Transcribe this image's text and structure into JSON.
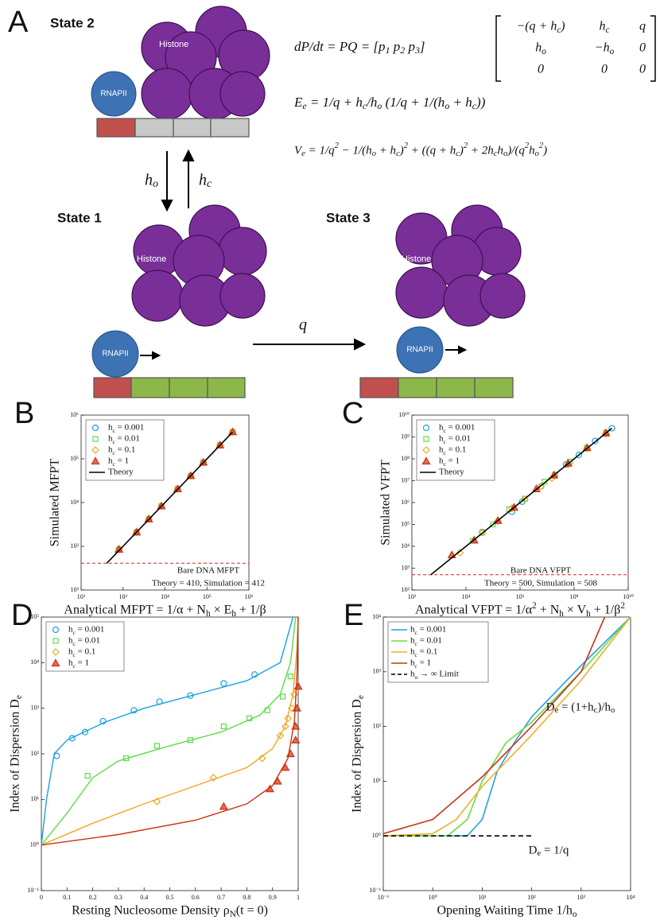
{
  "panel_a": {
    "label": "A",
    "state_2": "State 2",
    "state_1": "State 1",
    "state_3": "State 3",
    "histone_labels": [
      "Histone",
      "Histone",
      "Histone"
    ],
    "rnapii_labels": [
      "RNAPII",
      "RNAPII",
      "RNAPII"
    ],
    "rates": [
      "h_o",
      "h_c",
      "q"
    ],
    "equations": [
      "dP/dt = PQ = [p_1   p_2   p_3]",
      "E_e = 1/q + h_c/h_o (1/q + 1/(h_o + h_c))",
      "V_e = 1/q^2 − 1/(h_o + h_c)^2 + ((q + h_c)^2 + 2h_ch_o)/(q^2h_o^2)"
    ],
    "matrix": [
      [
        "−(q + h_c)",
        "h_c",
        "q"
      ],
      [
        "h_o",
        "−h_o",
        "0"
      ],
      [
        "0",
        "0",
        "0"
      ]
    ]
  },
  "chart_data": [
    {
      "type": "scatter",
      "panel_label": "B",
      "xlabel": "Analytical MFPT = 1/α + N_h × E_h + 1/β",
      "ylabel": "Simulated MFPT",
      "xscale": "log",
      "yscale": "log",
      "xlim": [
        100,
        1000000
      ],
      "ylim": [
        100,
        1000000
      ],
      "xticks": [
        {
          "value": 100,
          "label": "10²"
        },
        {
          "value": 1000,
          "label": "10³"
        },
        {
          "value": 10000,
          "label": "10⁴"
        },
        {
          "value": 100000,
          "label": "10⁵"
        },
        {
          "value": 1000000,
          "label": "10⁶"
        }
      ],
      "yticks": [
        {
          "value": 100,
          "label": "10²"
        },
        {
          "value": 1000,
          "label": "10³"
        },
        {
          "value": 10000,
          "label": "10⁴"
        },
        {
          "value": 100000,
          "label": "10⁵"
        },
        {
          "value": 1000000,
          "label": "10⁶"
        }
      ],
      "legend": "upper left",
      "series": [
        {
          "name": "h_c = 0.001",
          "color": "#1aa0e0",
          "marker": "circle",
          "x": [
            800,
            2100,
            4100,
            8200,
            20000,
            41000,
            82000,
            205000,
            410000
          ],
          "values": [
            850,
            2100,
            4200,
            8300,
            20500,
            41000,
            83000,
            206000,
            412000
          ]
        },
        {
          "name": "h_c = 0.01",
          "color": "#5ddb4a",
          "marker": "square",
          "x": [
            800,
            2100,
            4100,
            8200,
            20000,
            41000,
            82000,
            205000,
            410000
          ],
          "values": [
            850,
            2100,
            4200,
            8300,
            20500,
            41000,
            83000,
            206000,
            412000
          ]
        },
        {
          "name": "h_c = 0.1",
          "color": "#f0a820",
          "marker": "diamond",
          "x": [
            800,
            2100,
            4100,
            8200,
            20000,
            41000,
            82000,
            205000,
            410000
          ],
          "values": [
            850,
            2100,
            4200,
            8300,
            20500,
            41000,
            83000,
            206000,
            412000
          ]
        },
        {
          "name": "h_c = 1",
          "color": "#d03010",
          "marker": "triangle",
          "x": [
            800,
            2100,
            4100,
            8200,
            20000,
            41000,
            82000,
            205000,
            410000
          ],
          "values": [
            850,
            2100,
            4200,
            8300,
            20500,
            41000,
            83000,
            206000,
            412000
          ]
        },
        {
          "name": "Theory",
          "color": "#000000",
          "marker": "line",
          "x": [
            410,
            410000
          ],
          "values": [
            410,
            410000
          ]
        }
      ],
      "reference": {
        "value": 410,
        "color": "#e02020"
      },
      "annotations": [
        "Bare DNA MFPT",
        "Theory = 410, Simulation = 412"
      ]
    },
    {
      "type": "scatter",
      "panel_label": "C",
      "xlabel": "Analytical VFPT = 1/α^2 + N_h × V_h + 1/β^2",
      "ylabel": "Simulated VFPT",
      "xscale": "log",
      "yscale": "log",
      "xlim": [
        100,
        10000000000
      ],
      "ylim": [
        100,
        10000000000
      ],
      "xticks": [
        {
          "value": 100,
          "label": "10²"
        },
        {
          "value": 10000,
          "label": "10⁴"
        },
        {
          "value": 1000000,
          "label": "10⁶"
        },
        {
          "value": 100000000,
          "label": "10⁸"
        },
        {
          "value": 10000000000,
          "label": "10¹⁰"
        }
      ],
      "yticks": [
        {
          "value": 100,
          "label": "10²"
        },
        {
          "value": 1000,
          "label": "10³"
        },
        {
          "value": 10000,
          "label": "10⁴"
        },
        {
          "value": 100000,
          "label": "10⁵"
        },
        {
          "value": 1000000,
          "label": "10⁶"
        },
        {
          "value": 10000000,
          "label": "10⁷"
        },
        {
          "value": 100000000,
          "label": "10⁸"
        },
        {
          "value": 1000000000,
          "label": "10⁹"
        },
        {
          "value": 10000000000,
          "label": "10¹⁰"
        }
      ],
      "legend": "upper left",
      "series": [
        {
          "name": "h_c = 0.001",
          "color": "#1aa0e0",
          "marker": "circle",
          "x": [
            40000,
            500000,
            1200000,
            6000000,
            50000000,
            150000000,
            600000000,
            2500000000
          ],
          "values": [
            45000,
            380000,
            1100000,
            5500000,
            55000000,
            150000000,
            650000000,
            2500000000
          ]
        },
        {
          "name": "h_c = 0.01",
          "color": "#5ddb4a",
          "marker": "square",
          "x": [
            18000,
            40000,
            100000,
            400000,
            1500000,
            8000000,
            20000000,
            70000000,
            300000000,
            1500000000
          ],
          "values": [
            18000,
            42000,
            100000,
            500000,
            1500000,
            9000000,
            19000000,
            75000000,
            320000000,
            1600000000
          ]
        },
        {
          "name": "h_c = 0.1",
          "color": "#f0a820",
          "marker": "diamond",
          "x": [
            6000,
            40000,
            150000,
            500000,
            1500000,
            6000000,
            15000000,
            60000000,
            300000000,
            1500000000
          ],
          "values": [
            5000,
            42000,
            140000,
            550000,
            1400000,
            5500000,
            13000000,
            55000000,
            300000000,
            1400000000
          ]
        },
        {
          "name": "h_c = 1",
          "color": "#d03010",
          "marker": "triangle",
          "x": [
            3000,
            20000,
            150000,
            600000,
            4000000,
            18000000,
            60000000,
            300000000,
            1500000000
          ],
          "values": [
            4000,
            19000,
            150000,
            600000,
            4200000,
            18000000,
            62000000,
            320000000,
            1500000000
          ]
        },
        {
          "name": "Theory",
          "color": "#000000",
          "marker": "line",
          "x": [
            500,
            2500000000
          ],
          "values": [
            500,
            2500000000
          ]
        }
      ],
      "reference": {
        "value": 500,
        "color": "#e02020"
      },
      "annotations": [
        "Bare DNA VFPT",
        "Theory = 500, Simulation = 508"
      ]
    },
    {
      "type": "scatter",
      "panel_label": "D",
      "xlabel": "Resting Nucleosome Density ρ_N(t = 0)",
      "ylabel": "Index of Dispersion D_e",
      "xscale": "linear",
      "yscale": "log",
      "xlim": [
        0,
        1
      ],
      "ylim": [
        0.1,
        100000
      ],
      "xticks": [
        0,
        0.1,
        0.2,
        0.3,
        0.4,
        0.5,
        0.6,
        0.7,
        0.8,
        0.9,
        1
      ],
      "yticks": [
        {
          "value": 0.1,
          "label": "10⁻¹"
        },
        {
          "value": 1,
          "label": "10⁰"
        },
        {
          "value": 10,
          "label": "10¹"
        },
        {
          "value": 100,
          "label": "10²"
        },
        {
          "value": 1000,
          "label": "10³"
        },
        {
          "value": 10000,
          "label": "10⁴"
        },
        {
          "value": 100000,
          "label": "10⁵"
        }
      ],
      "legend": "upper left",
      "series": [
        {
          "name": "h_c = 0.001",
          "color": "#1aa0e0",
          "marker": "circle",
          "x": [
            0.06,
            0.12,
            0.17,
            0.24,
            0.36,
            0.46,
            0.58,
            0.71,
            0.83
          ],
          "values": [
            90,
            220,
            300,
            520,
            900,
            1400,
            1900,
            3500,
            5500
          ],
          "fit": {
            "x": [
              0,
              0.02,
              0.05,
              0.1,
              0.25,
              0.4,
              0.6,
              0.8,
              0.93,
              0.98
            ],
            "values": [
              1,
              10,
              100,
              200,
              500,
              1000,
              2000,
              4000,
              10000,
              100000
            ]
          }
        },
        {
          "name": "h_c = 0.01",
          "color": "#5ddb4a",
          "marker": "square",
          "x": [
            0.18,
            0.33,
            0.45,
            0.58,
            0.71,
            0.81,
            0.88,
            0.94,
            0.97
          ],
          "values": [
            33,
            80,
            150,
            200,
            400,
            600,
            900,
            1800,
            5000
          ],
          "fit": {
            "x": [
              0,
              0.1,
              0.2,
              0.3,
              0.5,
              0.7,
              0.85,
              0.93,
              0.97,
              0.99
            ],
            "values": [
              1,
              5,
              30,
              70,
              150,
              300,
              700,
              2000,
              10000,
              100000
            ]
          }
        },
        {
          "name": "h_c = 0.1",
          "color": "#f0a820",
          "marker": "diamond",
          "x": [
            0.45,
            0.67,
            0.86,
            0.93,
            0.95,
            0.96,
            0.975,
            0.985
          ],
          "values": [
            9,
            30,
            80,
            250,
            400,
            600,
            1000,
            2000
          ],
          "fit": {
            "x": [
              0,
              0.2,
              0.4,
              0.6,
              0.8,
              0.9,
              0.95,
              0.98,
              0.995,
              1
            ],
            "values": [
              1,
              3,
              8,
              20,
              50,
              130,
              400,
              2000,
              20000,
              100000
            ]
          }
        },
        {
          "name": "h_c = 1",
          "color": "#d03010",
          "marker": "triangle",
          "x": [
            0.71,
            0.89,
            0.92,
            0.95,
            0.97,
            0.99,
            0.99,
            0.995,
            1
          ],
          "values": [
            7,
            17,
            25,
            50,
            100,
            200,
            400,
            1000,
            3000
          ],
          "fit": {
            "x": [
              0,
              0.3,
              0.6,
              0.8,
              0.9,
              0.96,
              0.985,
              0.995,
              1
            ],
            "values": [
              1,
              1.7,
              3.5,
              8,
              20,
              80,
              500,
              5000,
              100000
            ]
          }
        }
      ]
    },
    {
      "type": "line",
      "panel_label": "E",
      "xlabel": "Opening Waiting Time 1/h_o",
      "ylabel": "Index of Dispersion D_e",
      "xscale": "log",
      "yscale": "log",
      "xlim": [
        0.1,
        10000
      ],
      "ylim": [
        0.1,
        10000
      ],
      "xticks": [
        {
          "value": 0.1,
          "label": "10⁻¹"
        },
        {
          "value": 1,
          "label": "10⁰"
        },
        {
          "value": 10,
          "label": "10¹"
        },
        {
          "value": 100,
          "label": "10²"
        },
        {
          "value": 1000,
          "label": "10³"
        },
        {
          "value": 10000,
          "label": "10⁴"
        }
      ],
      "yticks": [
        {
          "value": 0.1,
          "label": "10⁻¹"
        },
        {
          "value": 1,
          "label": "10⁰"
        },
        {
          "value": 10,
          "label": "10¹"
        },
        {
          "value": 100,
          "label": "10²"
        },
        {
          "value": 1000,
          "label": "10³"
        },
        {
          "value": 10000,
          "label": "10⁴"
        }
      ],
      "legend": "upper left",
      "series": [
        {
          "name": "h_c = 0.001",
          "color": "#2a9fe0",
          "x": [
            0.1,
            5,
            10,
            20,
            50,
            100,
            1000,
            10000
          ],
          "values": [
            1,
            1,
            2,
            15,
            60,
            150,
            1300,
            10000
          ]
        },
        {
          "name": "h_c = 0.01",
          "color": "#66dd44",
          "x": [
            0.1,
            2,
            5,
            10,
            30,
            100,
            1000,
            10000
          ],
          "values": [
            1,
            1,
            2,
            10,
            50,
            120,
            1000,
            10000
          ]
        },
        {
          "name": "h_c = 0.1",
          "color": "#eab030",
          "x": [
            0.1,
            1,
            3,
            10,
            100,
            1000,
            10000
          ],
          "values": [
            1,
            1.1,
            2,
            8,
            70,
            700,
            10000
          ]
        },
        {
          "name": "h_c = 1",
          "color": "#c8321a",
          "x": [
            0.1,
            1,
            10,
            100,
            1000,
            3000
          ],
          "values": [
            1.1,
            2,
            12,
            100,
            1000,
            10000
          ]
        },
        {
          "name": "h_o → ∞ Limit",
          "color": "#000000",
          "style": "dashed",
          "x": [
            0.1,
            100
          ],
          "values": [
            1,
            1
          ]
        }
      ],
      "annotations": [
        "D_e = (1+h_c)/h_o",
        "D_e = 1/q"
      ]
    }
  ]
}
